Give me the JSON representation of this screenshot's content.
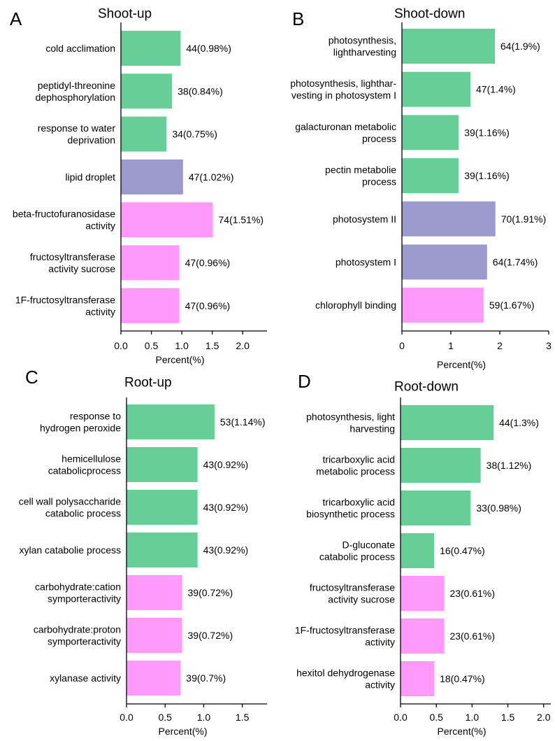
{
  "colors": {
    "green": "#67CE98",
    "purple": "#9C9ACD",
    "pink": "#FF99FB"
  },
  "chart_data": [
    {
      "type": "bar",
      "orientation": "horizontal",
      "panel": "A",
      "title": "Shoot-up",
      "xlabel": "Percent(%)",
      "xlim": [
        0,
        2.4
      ],
      "xticks": [
        "0.0",
        "0.5",
        "1.0",
        "1.5",
        "2.0"
      ],
      "xtick_values": [
        0,
        0.5,
        1.0,
        1.5,
        2.0
      ],
      "bars": [
        {
          "label": [
            "cold acclimation"
          ],
          "value": 0.98,
          "value_label": "44(0.98%)",
          "color": "green"
        },
        {
          "label": [
            "peptidyl-threonine",
            "dephosphorylation"
          ],
          "value": 0.84,
          "value_label": "38(0.84%)",
          "color": "green"
        },
        {
          "label": [
            "response to water",
            "deprivation"
          ],
          "value": 0.75,
          "value_label": "34(0.75%)",
          "color": "green"
        },
        {
          "label": [
            "lipid droplet"
          ],
          "value": 1.02,
          "value_label": "47(1.02%)",
          "color": "purple"
        },
        {
          "label": [
            "beta-fructofuranosidase",
            "activity"
          ],
          "value": 1.51,
          "value_label": "74(1.51%)",
          "color": "pink"
        },
        {
          "label": [
            "fructosyltransferase",
            "activity sucrose"
          ],
          "value": 0.96,
          "value_label": "47(0.96%)",
          "color": "pink"
        },
        {
          "label": [
            "1F-fructosyltransferase",
            "activity"
          ],
          "value": 0.96,
          "value_label": "47(0.96%)",
          "color": "pink"
        }
      ]
    },
    {
      "type": "bar",
      "orientation": "horizontal",
      "panel": "B",
      "title": "Shoot-down",
      "xlabel": "Percent(%)",
      "xlim": [
        0,
        3
      ],
      "xticks": [
        "0",
        "1",
        "2",
        "3"
      ],
      "xtick_values": [
        0,
        1,
        2,
        3
      ],
      "bars": [
        {
          "label": [
            "photosynthesis,",
            "lightharvesting"
          ],
          "value": 1.9,
          "value_label": "64(1.9%)",
          "color": "green"
        },
        {
          "label": [
            "photosynthesis, lighthar-",
            "vesting in photosystem I"
          ],
          "value": 1.4,
          "value_label": "47(1.4%)",
          "color": "green"
        },
        {
          "label": [
            "galacturonan metabolic",
            "process"
          ],
          "value": 1.16,
          "value_label": "39(1.16%)",
          "color": "green"
        },
        {
          "label": [
            "pectin metabolie",
            "process"
          ],
          "value": 1.16,
          "value_label": "39(1.16%)",
          "color": "green"
        },
        {
          "label": [
            "photosystem II"
          ],
          "value": 1.91,
          "value_label": "70(1.91%)",
          "color": "purple"
        },
        {
          "label": [
            "photosystem I"
          ],
          "value": 1.74,
          "value_label": "64(1.74%)",
          "color": "purple"
        },
        {
          "label": [
            "chlorophyll binding"
          ],
          "value": 1.67,
          "value_label": "59(1.67%)",
          "color": "pink"
        }
      ]
    },
    {
      "type": "bar",
      "orientation": "horizontal",
      "panel": "C",
      "title": "Root-up",
      "xlabel": "Percent(%)",
      "xlim": [
        0,
        1.82
      ],
      "xticks": [
        "0.0",
        "0.5",
        "1.0",
        "1.5"
      ],
      "xtick_values": [
        0,
        0.5,
        1.0,
        1.5
      ],
      "bars": [
        {
          "label": [
            "response to",
            "hydrogen peroxide"
          ],
          "value": 1.14,
          "value_label": "53(1.14%)",
          "color": "green"
        },
        {
          "label": [
            "hemicellulose",
            "catabolicprocess"
          ],
          "value": 0.92,
          "value_label": "43(0.92%)",
          "color": "green"
        },
        {
          "label": [
            "cell wall polysaccharide",
            "catabolic process"
          ],
          "value": 0.92,
          "value_label": "43(0.92%)",
          "color": "green"
        },
        {
          "label": [
            "xylan catabolie process"
          ],
          "value": 0.92,
          "value_label": "43(0.92%)",
          "color": "green"
        },
        {
          "label": [
            "carbohydrate:cation",
            "symporteractivity"
          ],
          "value": 0.72,
          "value_label": "39(0.72%)",
          "color": "pink"
        },
        {
          "label": [
            "carbohydrate:proton",
            "symporteractivity"
          ],
          "value": 0.72,
          "value_label": "39(0.72%)",
          "color": "pink"
        },
        {
          "label": [
            "xylanase activity"
          ],
          "value": 0.7,
          "value_label": "39(0.7%)",
          "color": "pink"
        }
      ]
    },
    {
      "type": "bar",
      "orientation": "horizontal",
      "panel": "D",
      "title": "Root-down",
      "xlabel": "Percent(%)",
      "xlim": [
        0,
        2.1
      ],
      "xticks": [
        "0.0",
        "0.5",
        "1.0",
        "1.5",
        "2.0"
      ],
      "xtick_values": [
        0,
        0.5,
        1.0,
        1.5,
        2.0
      ],
      "bars": [
        {
          "label": [
            "photosynthesis, light",
            "harvesting"
          ],
          "value": 1.3,
          "value_label": "44(1.3%)",
          "color": "green"
        },
        {
          "label": [
            "tricarboxylic acid",
            "metabolic process"
          ],
          "value": 1.12,
          "value_label": "38(1.12%)",
          "color": "green"
        },
        {
          "label": [
            "tricarboxylic acid",
            "biosynthetic process"
          ],
          "value": 0.98,
          "value_label": "33(0.98%)",
          "color": "green"
        },
        {
          "label": [
            "D-gluconate",
            "catabolic process"
          ],
          "value": 0.47,
          "value_label": "16(0.47%)",
          "color": "green"
        },
        {
          "label": [
            "fructosyltransferase",
            "activity sucrose"
          ],
          "value": 0.61,
          "value_label": "23(0.61%)",
          "color": "pink"
        },
        {
          "label": [
            "1F-fructosyltransferase",
            "activity"
          ],
          "value": 0.61,
          "value_label": "23(0.61%)",
          "color": "pink"
        },
        {
          "label": [
            "hexitol dehydrogenase",
            "activity"
          ],
          "value": 0.47,
          "value_label": "18(0.47%)",
          "color": "pink"
        }
      ]
    }
  ]
}
